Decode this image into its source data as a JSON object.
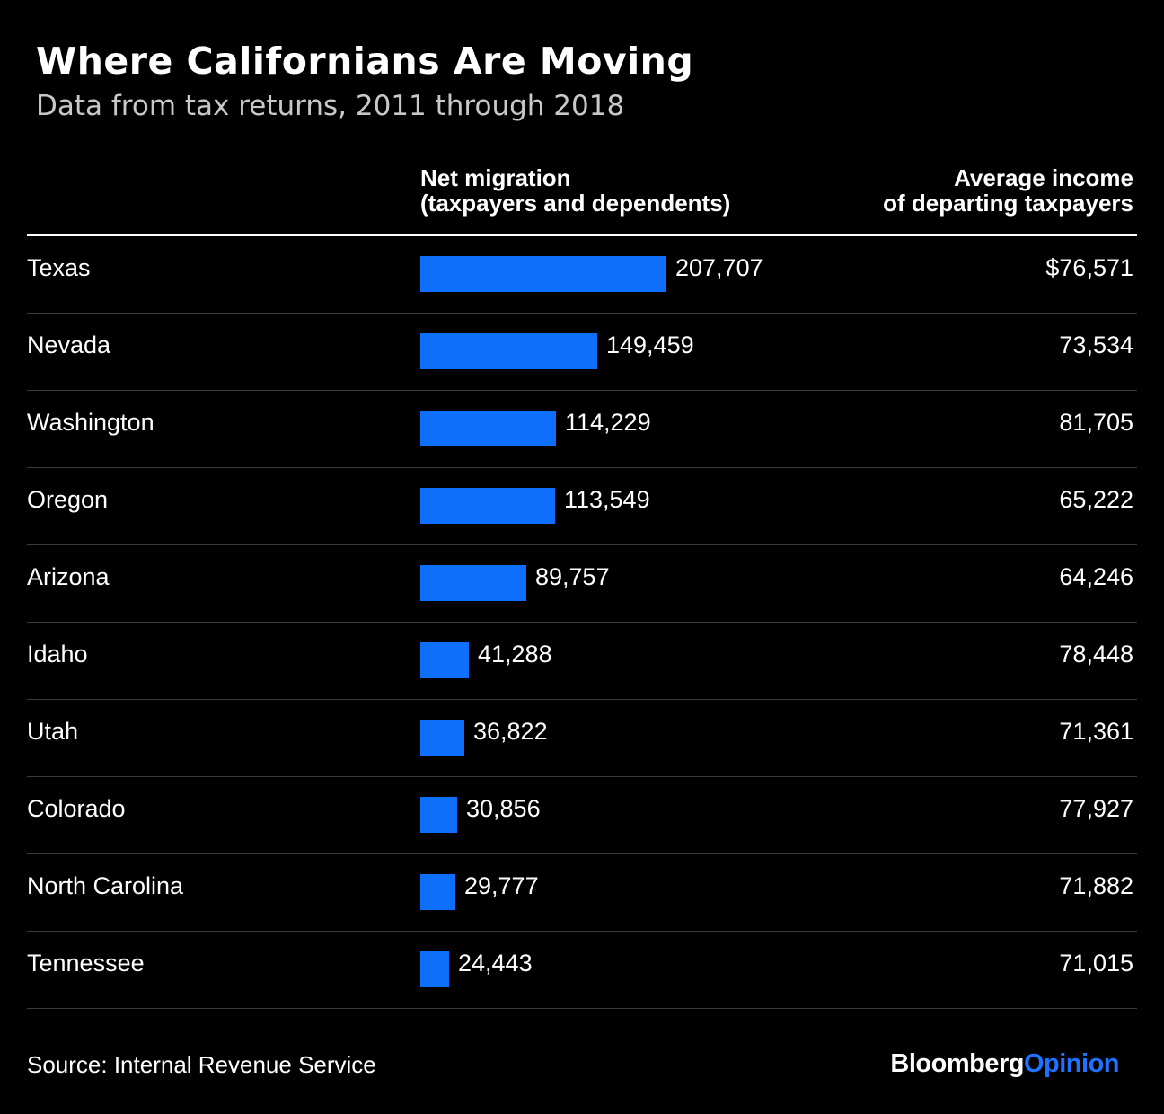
{
  "title": "Where Californians Are Moving",
  "subtitle": "Data from tax returns, 2011 through 2018",
  "columns": {
    "migration_line1": "Net migration",
    "migration_line2": "(taxpayers and dependents)",
    "income_line1": "Average income",
    "income_line2": "of departing taxpayers"
  },
  "footer": {
    "source": "Source: Internal Revenue Service",
    "logo_brand": "Bloomberg",
    "logo_section": "Opinion"
  },
  "colors": {
    "background": "#000000",
    "bar": "#0f6ffd",
    "logo_accent": "#1f72ff"
  },
  "chart_data": {
    "type": "bar",
    "orientation": "horizontal",
    "categories": [
      "Texas",
      "Nevada",
      "Washington",
      "Oregon",
      "Arizona",
      "Idaho",
      "Utah",
      "Colorado",
      "North Carolina",
      "Tennessee"
    ],
    "values": [
      207707,
      149459,
      114229,
      113549,
      89757,
      41288,
      36822,
      30856,
      29777,
      24443
    ],
    "value_labels": [
      "207,707",
      "149,459",
      "114,229",
      "113,549",
      "89,757",
      "41,288",
      "36,822",
      "30,856",
      "29,777",
      "24,443"
    ],
    "income_values": [
      76571,
      73534,
      81705,
      65222,
      64246,
      78448,
      71361,
      77927,
      71882,
      71015
    ],
    "income_labels": [
      "$76,571",
      "73,534",
      "81,705",
      "65,222",
      "64,246",
      "78,448",
      "71,361",
      "77,927",
      "71,882",
      "71,015"
    ]
  }
}
